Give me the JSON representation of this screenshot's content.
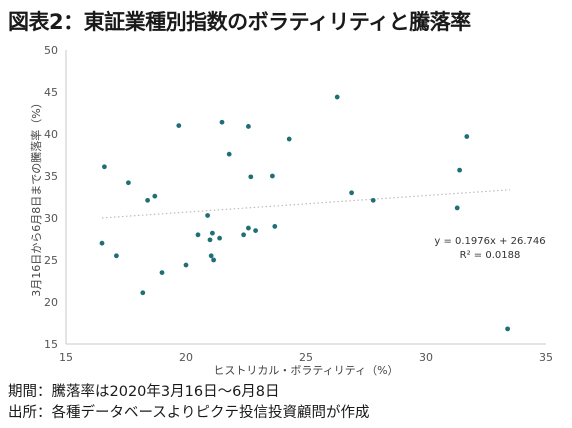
{
  "title": "図表2：東証業種別指数のボラティリティと騰落率",
  "notes": {
    "period": "期間：騰落率は2020年3月16日～6月8日",
    "source": "出所：各種データベースよりピクテ投信投資顧問が作成"
  },
  "colors": {
    "points": "#1f6f74",
    "trend": "#bdbdbd",
    "axis": "#c8c8c8"
  },
  "chart_data": {
    "type": "scatter",
    "xlabel": "ヒストリカル・ボラティリティ（%）",
    "ylabel": "3月16日から6月8日までの騰落率（%）",
    "xlim": [
      15,
      35
    ],
    "ylim": [
      15,
      50
    ],
    "xticks": [
      "15",
      "20",
      "25",
      "30",
      "35"
    ],
    "yticks": [
      "15",
      "20",
      "25",
      "30",
      "35",
      "40",
      "45",
      "50"
    ],
    "grid": false,
    "trendline": {
      "equation": "y = 0.1976x + 26.746",
      "r2": "R² = 0.0188",
      "slope": 0.1976,
      "intercept": 26.746,
      "x_range": [
        16.5,
        33.5
      ]
    },
    "points": [
      {
        "x": 16.5,
        "y": 27.0
      },
      {
        "x": 16.6,
        "y": 36.1
      },
      {
        "x": 17.1,
        "y": 25.5
      },
      {
        "x": 17.6,
        "y": 34.2
      },
      {
        "x": 18.2,
        "y": 21.1
      },
      {
        "x": 18.4,
        "y": 32.1
      },
      {
        "x": 18.7,
        "y": 32.6
      },
      {
        "x": 19.0,
        "y": 23.5
      },
      {
        "x": 19.7,
        "y": 41.0
      },
      {
        "x": 20.0,
        "y": 24.4
      },
      {
        "x": 20.5,
        "y": 28.0
      },
      {
        "x": 20.9,
        "y": 30.3
      },
      {
        "x": 21.0,
        "y": 27.4
      },
      {
        "x": 21.05,
        "y": 25.5
      },
      {
        "x": 21.1,
        "y": 28.2
      },
      {
        "x": 21.15,
        "y": 25.0
      },
      {
        "x": 21.4,
        "y": 27.6
      },
      {
        "x": 21.5,
        "y": 41.4
      },
      {
        "x": 21.8,
        "y": 37.6
      },
      {
        "x": 22.4,
        "y": 28.0
      },
      {
        "x": 22.6,
        "y": 28.8
      },
      {
        "x": 22.6,
        "y": 40.9
      },
      {
        "x": 22.7,
        "y": 34.9
      },
      {
        "x": 22.9,
        "y": 28.5
      },
      {
        "x": 23.6,
        "y": 35.0
      },
      {
        "x": 23.7,
        "y": 29.0
      },
      {
        "x": 24.3,
        "y": 39.4
      },
      {
        "x": 26.3,
        "y": 44.4
      },
      {
        "x": 26.9,
        "y": 33.0
      },
      {
        "x": 27.8,
        "y": 32.1
      },
      {
        "x": 31.3,
        "y": 31.2
      },
      {
        "x": 31.4,
        "y": 35.7
      },
      {
        "x": 31.7,
        "y": 39.7
      },
      {
        "x": 33.4,
        "y": 16.8
      }
    ]
  }
}
